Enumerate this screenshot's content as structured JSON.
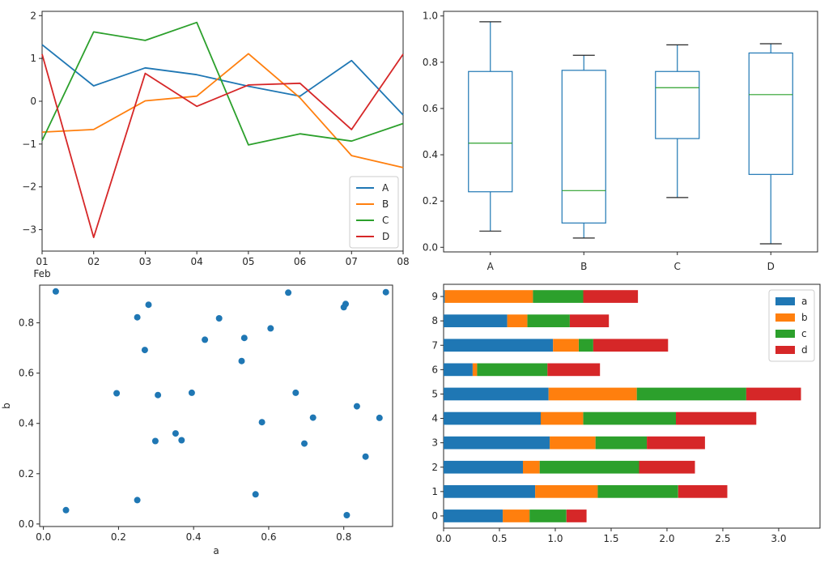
{
  "colors": {
    "blue": "#1f77b4",
    "orange": "#ff7f0e",
    "green": "#2ca02c",
    "red": "#d62728",
    "axis": "#262626"
  },
  "chart_data": [
    {
      "type": "line",
      "x": [
        "01",
        "02",
        "03",
        "04",
        "05",
        "06",
        "07",
        "08"
      ],
      "x_sublabel": "Feb",
      "ylim": [
        -3.5,
        2.1
      ],
      "yticks": [
        -3,
        -2,
        -1,
        0,
        1,
        2
      ],
      "ytick_labels": [
        "−3",
        "−2",
        "−1",
        "0",
        "1",
        "2"
      ],
      "legend": "lower-right",
      "series": [
        {
          "name": "A",
          "color": "#1f77b4",
          "values": [
            1.32,
            0.36,
            0.78,
            0.62,
            0.35,
            0.12,
            0.95,
            -0.32
          ]
        },
        {
          "name": "B",
          "color": "#ff7f0e",
          "values": [
            -0.72,
            -0.66,
            0.01,
            0.12,
            1.11,
            0.08,
            -1.27,
            -1.55
          ]
        },
        {
          "name": "C",
          "color": "#2ca02c",
          "values": [
            -0.92,
            1.62,
            1.42,
            1.84,
            -1.02,
            -0.76,
            -0.93,
            -0.52
          ]
        },
        {
          "name": "D",
          "color": "#d62728",
          "values": [
            1.1,
            -3.18,
            0.65,
            -0.12,
            0.38,
            0.42,
            -0.66,
            1.1
          ]
        }
      ]
    },
    {
      "type": "box",
      "categories": [
        "A",
        "B",
        "C",
        "D"
      ],
      "ylim": [
        -0.02,
        1.02
      ],
      "yticks": [
        0,
        0.2,
        0.4,
        0.6,
        0.8,
        1
      ],
      "ytick_labels": [
        "0.0",
        "0.2",
        "0.4",
        "0.6",
        "0.8",
        "1.0"
      ],
      "box_color": "#1f77b4",
      "median_color": "#2ca02c",
      "boxes": [
        {
          "whislo": 0.07,
          "q1": 0.24,
          "med": 0.45,
          "q3": 0.76,
          "whishi": 0.975
        },
        {
          "whislo": 0.04,
          "q1": 0.105,
          "med": 0.245,
          "q3": 0.765,
          "whishi": 0.83
        },
        {
          "whislo": 0.215,
          "q1": 0.47,
          "med": 0.69,
          "q3": 0.76,
          "whishi": 0.875
        },
        {
          "whislo": 0.015,
          "q1": 0.315,
          "med": 0.66,
          "q3": 0.84,
          "whishi": 0.88
        }
      ]
    },
    {
      "type": "scatter",
      "xlabel": "a",
      "ylabel": "b",
      "xlim": [
        -0.01,
        0.93
      ],
      "ylim": [
        -0.01,
        0.95
      ],
      "xticks": [
        0,
        0.2,
        0.4,
        0.6,
        0.8
      ],
      "xtick_labels": [
        "0.0",
        "0.2",
        "0.4",
        "0.6",
        "0.8"
      ],
      "yticks": [
        0,
        0.2,
        0.4,
        0.6,
        0.8
      ],
      "ytick_labels": [
        "0.0",
        "0.2",
        "0.4",
        "0.6",
        "0.8"
      ],
      "color": "#1f77b4",
      "points": [
        [
          0.033,
          0.925
        ],
        [
          0.06,
          0.055
        ],
        [
          0.195,
          0.52
        ],
        [
          0.25,
          0.822
        ],
        [
          0.25,
          0.095
        ],
        [
          0.27,
          0.692
        ],
        [
          0.28,
          0.872
        ],
        [
          0.298,
          0.33
        ],
        [
          0.305,
          0.513
        ],
        [
          0.352,
          0.36
        ],
        [
          0.368,
          0.333
        ],
        [
          0.395,
          0.522
        ],
        [
          0.43,
          0.733
        ],
        [
          0.468,
          0.818
        ],
        [
          0.528,
          0.648
        ],
        [
          0.535,
          0.74
        ],
        [
          0.565,
          0.118
        ],
        [
          0.582,
          0.405
        ],
        [
          0.605,
          0.778
        ],
        [
          0.652,
          0.92
        ],
        [
          0.672,
          0.522
        ],
        [
          0.695,
          0.32
        ],
        [
          0.718,
          0.423
        ],
        [
          0.8,
          0.862
        ],
        [
          0.805,
          0.875
        ],
        [
          0.808,
          0.035
        ],
        [
          0.835,
          0.468
        ],
        [
          0.858,
          0.268
        ],
        [
          0.895,
          0.422
        ],
        [
          0.912,
          0.922
        ]
      ]
    },
    {
      "type": "bar",
      "orientation": "horizontal",
      "stacked": true,
      "categories": [
        "0",
        "1",
        "2",
        "3",
        "4",
        "5",
        "6",
        "7",
        "8",
        "9"
      ],
      "xlim": [
        0,
        3.37
      ],
      "xticks": [
        0,
        0.5,
        1,
        1.5,
        2,
        2.5,
        3
      ],
      "xtick_labels": [
        "0.0",
        "0.5",
        "1.0",
        "1.5",
        "2.0",
        "2.5",
        "3.0"
      ],
      "legend": "top-right",
      "series": [
        {
          "name": "a",
          "color": "#1f77b4",
          "values": [
            0.53,
            0.82,
            0.71,
            0.95,
            0.87,
            0.94,
            0.26,
            0.98,
            0.57,
            0.01
          ]
        },
        {
          "name": "b",
          "color": "#ff7f0e",
          "values": [
            0.24,
            0.56,
            0.15,
            0.41,
            0.38,
            0.79,
            0.04,
            0.23,
            0.18,
            0.79
          ]
        },
        {
          "name": "c",
          "color": "#2ca02c",
          "values": [
            0.33,
            0.72,
            0.89,
            0.46,
            0.83,
            0.98,
            0.63,
            0.13,
            0.38,
            0.45
          ]
        },
        {
          "name": "d",
          "color": "#d62728",
          "values": [
            0.18,
            0.44,
            0.5,
            0.52,
            0.72,
            0.49,
            0.47,
            0.67,
            0.35,
            0.49
          ]
        }
      ]
    }
  ]
}
